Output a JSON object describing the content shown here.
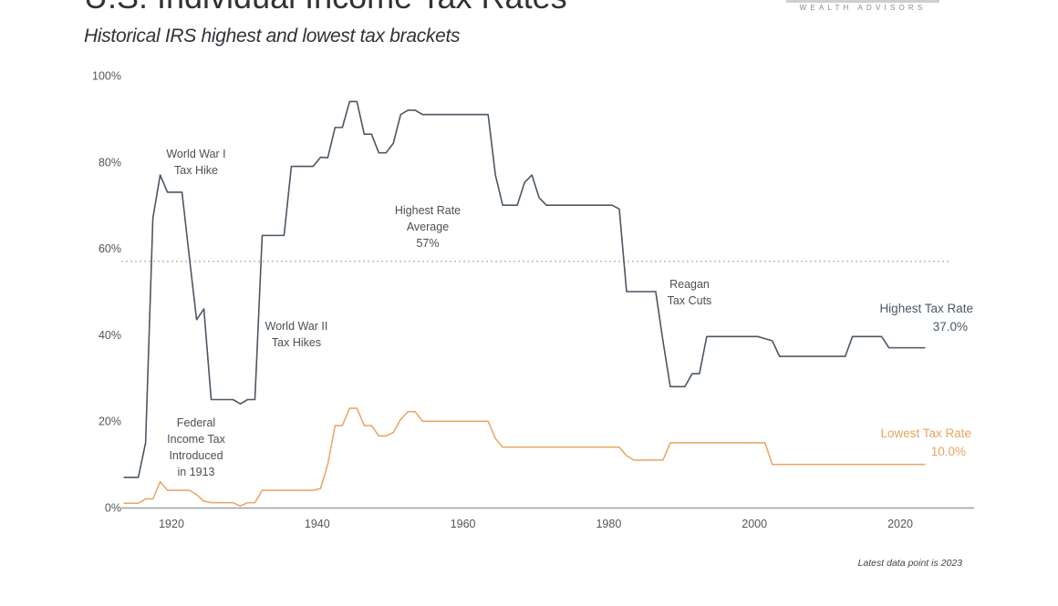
{
  "header": {
    "title": "U.S. Individual Income Tax Rates",
    "subtitle": "Historical IRS highest and lowest tax brackets",
    "logo_text": "WEALTH ADVISORS"
  },
  "footnote": "Latest data point is 2023",
  "chart_data": {
    "type": "line",
    "title": "U.S. Individual Income Tax Rates",
    "subtitle": "Historical IRS highest and lowest tax brackets",
    "xlabel": "",
    "ylabel": "",
    "xlim": [
      1913,
      2030
    ],
    "ylim": [
      0,
      100
    ],
    "x_ticks": [
      1920,
      1940,
      1960,
      1980,
      2000,
      2020
    ],
    "y_ticks": [
      "0%",
      "20%",
      "40%",
      "60%",
      "80%",
      "100%"
    ],
    "y_tick_values": [
      0,
      20,
      40,
      60,
      80,
      100
    ],
    "grid": false,
    "x": [
      1913,
      1914,
      1915,
      1916,
      1917,
      1918,
      1919,
      1920,
      1921,
      1922,
      1923,
      1924,
      1925,
      1926,
      1927,
      1928,
      1929,
      1930,
      1931,
      1932,
      1933,
      1934,
      1935,
      1936,
      1937,
      1938,
      1939,
      1940,
      1941,
      1942,
      1943,
      1944,
      1945,
      1946,
      1947,
      1948,
      1949,
      1950,
      1951,
      1952,
      1953,
      1954,
      1955,
      1956,
      1957,
      1958,
      1959,
      1960,
      1961,
      1962,
      1963,
      1964,
      1965,
      1966,
      1967,
      1968,
      1969,
      1970,
      1971,
      1972,
      1973,
      1974,
      1975,
      1976,
      1977,
      1978,
      1979,
      1980,
      1981,
      1982,
      1983,
      1984,
      1985,
      1986,
      1987,
      1988,
      1989,
      1990,
      1991,
      1992,
      1993,
      1994,
      1995,
      1996,
      1997,
      1998,
      1999,
      2000,
      2001,
      2002,
      2003,
      2004,
      2005,
      2006,
      2007,
      2008,
      2009,
      2010,
      2011,
      2012,
      2013,
      2014,
      2015,
      2016,
      2017,
      2018,
      2019,
      2020,
      2021,
      2022,
      2023
    ],
    "series": [
      {
        "name": "Highest Tax Rate",
        "color": "#4b5763",
        "end_label": "Highest Tax Rate",
        "end_value_label": "37.0%",
        "values": [
          7,
          7,
          7,
          15,
          67,
          77,
          73,
          73,
          73,
          58,
          43.5,
          46,
          25,
          25,
          25,
          25,
          24,
          25,
          25,
          63,
          63,
          63,
          63,
          79,
          79,
          79,
          79,
          81.1,
          81,
          88,
          88,
          94,
          94,
          86.45,
          86.45,
          82.13,
          82.13,
          84.36,
          91,
          92,
          92,
          91,
          91,
          91,
          91,
          91,
          91,
          91,
          91,
          91,
          91,
          77,
          70,
          70,
          70,
          75.25,
          77,
          71.75,
          70,
          70,
          70,
          70,
          70,
          70,
          70,
          70,
          70,
          70,
          69.13,
          50,
          50,
          50,
          50,
          50,
          38.5,
          28,
          28,
          28,
          31,
          31,
          39.6,
          39.6,
          39.6,
          39.6,
          39.6,
          39.6,
          39.6,
          39.6,
          39.1,
          38.6,
          35,
          35,
          35,
          35,
          35,
          35,
          35,
          35,
          35,
          35,
          39.6,
          39.6,
          39.6,
          39.6,
          39.6,
          37,
          37,
          37,
          37,
          37,
          37
        ]
      },
      {
        "name": "Lowest Tax Rate",
        "color": "#e9a45f",
        "end_label": "Lowest Tax Rate",
        "end_value_label": "10.0%",
        "values": [
          1,
          1,
          1,
          2,
          2,
          6,
          4,
          4,
          4,
          4,
          3,
          1.5,
          1.125,
          1.125,
          1.125,
          1.125,
          0.375,
          1.125,
          1.125,
          4,
          4,
          4,
          4,
          4,
          4,
          4,
          4,
          4.4,
          10,
          19,
          19,
          23,
          23,
          19,
          19,
          16.6,
          16.6,
          17.4,
          20.4,
          22.2,
          22.2,
          20,
          20,
          20,
          20,
          20,
          20,
          20,
          20,
          20,
          20,
          16,
          14,
          14,
          14,
          14,
          14,
          14,
          14,
          14,
          14,
          14,
          14,
          14,
          14,
          14,
          14,
          14,
          14,
          12,
          11,
          11,
          11,
          11,
          11,
          15,
          15,
          15,
          15,
          15,
          15,
          15,
          15,
          15,
          15,
          15,
          15,
          15,
          15,
          10,
          10,
          10,
          10,
          10,
          10,
          10,
          10,
          10,
          10,
          10,
          10,
          10,
          10,
          10,
          10,
          10,
          10,
          10,
          10,
          10,
          10
        ]
      }
    ],
    "reference_line": {
      "value": 57,
      "style": "dotted",
      "label": [
        "Highest Rate",
        "Average",
        "57%"
      ]
    },
    "annotations": [
      {
        "id": "wwi",
        "lines": [
          "World War I",
          "Tax Hike"
        ]
      },
      {
        "id": "federal",
        "lines": [
          "Federal",
          "Income Tax",
          "Introduced",
          "in 1913"
        ]
      },
      {
        "id": "wwii",
        "lines": [
          "World War II",
          "Tax Hikes"
        ]
      },
      {
        "id": "reagan",
        "lines": [
          "Reagan",
          "Tax Cuts"
        ]
      }
    ]
  }
}
